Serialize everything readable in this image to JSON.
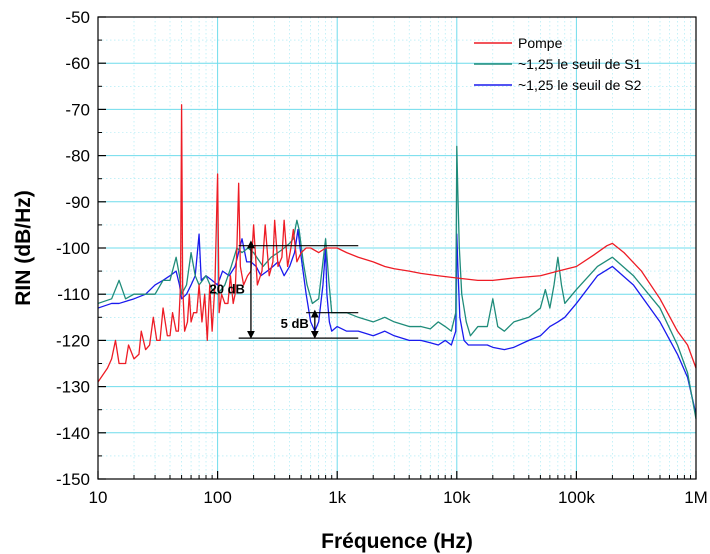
{
  "chart_data": {
    "type": "line",
    "xlabel": "Fréquence (Hz)",
    "ylabel": "RIN (dB/Hz)",
    "x_scale": "log",
    "xlim": [
      10,
      1000000
    ],
    "ylim": [
      -150,
      -50
    ],
    "x_ticks": [
      {
        "value": 10,
        "label": "10"
      },
      {
        "value": 100,
        "label": "100"
      },
      {
        "value": 1000,
        "label": "1k"
      },
      {
        "value": 10000,
        "label": "10k"
      },
      {
        "value": 100000,
        "label": "100k"
      },
      {
        "value": 1000000,
        "label": "1M"
      }
    ],
    "y_ticks": [
      {
        "value": -50,
        "label": "-50"
      },
      {
        "value": -60,
        "label": "-60"
      },
      {
        "value": -70,
        "label": "-70"
      },
      {
        "value": -80,
        "label": "-80"
      },
      {
        "value": -90,
        "label": "-90"
      },
      {
        "value": -100,
        "label": "-100"
      },
      {
        "value": -110,
        "label": "-110"
      },
      {
        "value": -120,
        "label": "-120"
      },
      {
        "value": -130,
        "label": "-130"
      },
      {
        "value": -140,
        "label": "-140"
      },
      {
        "value": -150,
        "label": "-150"
      }
    ],
    "grid": true,
    "legend_position": "top-right",
    "series": [
      {
        "name": "Pompe",
        "color": "#ee1c25",
        "points": [
          [
            10,
            -129
          ],
          [
            12,
            -126
          ],
          [
            13,
            -124
          ],
          [
            14,
            -120
          ],
          [
            15,
            -125
          ],
          [
            17,
            -125
          ],
          [
            18,
            -121
          ],
          [
            20,
            -124
          ],
          [
            22,
            -123
          ],
          [
            23,
            -118
          ],
          [
            25,
            -122
          ],
          [
            27,
            -121
          ],
          [
            29,
            -115
          ],
          [
            31,
            -120
          ],
          [
            33,
            -120
          ],
          [
            35,
            -113
          ],
          [
            38,
            -119
          ],
          [
            40,
            -119
          ],
          [
            42,
            -114
          ],
          [
            45,
            -118
          ],
          [
            47,
            -118
          ],
          [
            49,
            -108
          ],
          [
            50,
            -69
          ],
          [
            51,
            -108
          ],
          [
            53,
            -118
          ],
          [
            56,
            -116
          ],
          [
            58,
            -110
          ],
          [
            60,
            -116
          ],
          [
            63,
            -114
          ],
          [
            67,
            -114
          ],
          [
            70,
            -108
          ],
          [
            74,
            -116
          ],
          [
            78,
            -110
          ],
          [
            82,
            -120
          ],
          [
            86,
            -108
          ],
          [
            90,
            -118
          ],
          [
            95,
            -108
          ],
          [
            100,
            -84
          ],
          [
            103,
            -114
          ],
          [
            108,
            -110
          ],
          [
            115,
            -112
          ],
          [
            122,
            -112
          ],
          [
            128,
            -106
          ],
          [
            135,
            -112
          ],
          [
            140,
            -110
          ],
          [
            145,
            -100
          ],
          [
            150,
            -86
          ],
          [
            155,
            -104
          ],
          [
            165,
            -108
          ],
          [
            178,
            -106
          ],
          [
            190,
            -105
          ],
          [
            200,
            -95
          ],
          [
            215,
            -108
          ],
          [
            235,
            -105
          ],
          [
            250,
            -95
          ],
          [
            270,
            -106
          ],
          [
            290,
            -103
          ],
          [
            300,
            -94
          ],
          [
            320,
            -104
          ],
          [
            345,
            -102
          ],
          [
            360,
            -94
          ],
          [
            385,
            -104
          ],
          [
            410,
            -100
          ],
          [
            430,
            -96
          ],
          [
            460,
            -103
          ],
          [
            500,
            -101
          ],
          [
            550,
            -100
          ],
          [
            600,
            -100
          ],
          [
            700,
            -101
          ],
          [
            800,
            -100
          ],
          [
            1000,
            -100
          ],
          [
            1200,
            -101
          ],
          [
            1500,
            -102
          ],
          [
            2000,
            -103
          ],
          [
            2500,
            -104
          ],
          [
            3000,
            -104.5
          ],
          [
            4000,
            -105
          ],
          [
            5000,
            -105.5
          ],
          [
            7000,
            -106
          ],
          [
            10000,
            -106.5
          ],
          [
            15000,
            -107
          ],
          [
            20000,
            -107
          ],
          [
            30000,
            -106.5
          ],
          [
            50000,
            -106
          ],
          [
            70000,
            -105
          ],
          [
            100000,
            -104
          ],
          [
            140000,
            -101.5
          ],
          [
            180000,
            -99.5
          ],
          [
            200000,
            -99
          ],
          [
            250000,
            -101
          ],
          [
            350000,
            -105
          ],
          [
            500000,
            -111
          ],
          [
            700000,
            -118
          ],
          [
            850000,
            -121
          ],
          [
            1000000,
            -126
          ]
        ]
      },
      {
        "name": "~1,25 le seuil de S1",
        "color": "#1f8c7a",
        "points": [
          [
            10,
            -112
          ],
          [
            13,
            -111
          ],
          [
            15,
            -107
          ],
          [
            17,
            -111
          ],
          [
            20,
            -110
          ],
          [
            25,
            -110
          ],
          [
            30,
            -110
          ],
          [
            35,
            -107
          ],
          [
            40,
            -107
          ],
          [
            45,
            -102
          ],
          [
            48,
            -106
          ],
          [
            50,
            -110
          ],
          [
            55,
            -108
          ],
          [
            60,
            -101
          ],
          [
            65,
            -106
          ],
          [
            70,
            -108
          ],
          [
            80,
            -106
          ],
          [
            90,
            -109
          ],
          [
            100,
            -110
          ],
          [
            115,
            -108
          ],
          [
            130,
            -104
          ],
          [
            145,
            -100
          ],
          [
            160,
            -101
          ],
          [
            180,
            -100
          ],
          [
            200,
            -101
          ],
          [
            240,
            -104
          ],
          [
            280,
            -102
          ],
          [
            320,
            -101
          ],
          [
            360,
            -100
          ],
          [
            400,
            -99
          ],
          [
            430,
            -98
          ],
          [
            460,
            -94
          ],
          [
            480,
            -96
          ],
          [
            520,
            -103
          ],
          [
            560,
            -108
          ],
          [
            620,
            -112
          ],
          [
            700,
            -111
          ],
          [
            800,
            -98
          ],
          [
            850,
            -107
          ],
          [
            900,
            -114
          ],
          [
            1000,
            -114
          ],
          [
            1200,
            -114
          ],
          [
            1500,
            -115
          ],
          [
            2000,
            -116
          ],
          [
            2500,
            -115
          ],
          [
            3000,
            -116
          ],
          [
            4000,
            -117
          ],
          [
            5000,
            -117
          ],
          [
            6000,
            -117.5
          ],
          [
            7000,
            -116
          ],
          [
            8000,
            -117
          ],
          [
            9000,
            -118
          ],
          [
            9800,
            -114
          ],
          [
            10000,
            -78
          ],
          [
            10200,
            -88
          ],
          [
            10500,
            -100
          ],
          [
            11000,
            -110
          ],
          [
            12000,
            -116
          ],
          [
            13000,
            -119
          ],
          [
            15000,
            -117
          ],
          [
            18000,
            -117
          ],
          [
            20000,
            -111
          ],
          [
            22000,
            -117
          ],
          [
            25000,
            -118
          ],
          [
            30000,
            -116
          ],
          [
            40000,
            -115
          ],
          [
            50000,
            -113
          ],
          [
            55000,
            -109
          ],
          [
            60000,
            -113
          ],
          [
            65000,
            -108
          ],
          [
            70000,
            -102
          ],
          [
            75000,
            -108
          ],
          [
            80000,
            -112
          ],
          [
            100000,
            -109
          ],
          [
            150000,
            -104
          ],
          [
            200000,
            -102
          ],
          [
            300000,
            -106
          ],
          [
            500000,
            -113
          ],
          [
            700000,
            -121
          ],
          [
            850000,
            -127
          ],
          [
            1000000,
            -137
          ]
        ]
      },
      {
        "name": "~1,25 le seuil de S2",
        "color": "#1a1aee",
        "points": [
          [
            10,
            -113
          ],
          [
            13,
            -112
          ],
          [
            15,
            -112
          ],
          [
            20,
            -111
          ],
          [
            25,
            -110
          ],
          [
            30,
            -108
          ],
          [
            35,
            -107
          ],
          [
            40,
            -106
          ],
          [
            45,
            -105
          ],
          [
            48,
            -108
          ],
          [
            50,
            -111
          ],
          [
            55,
            -110
          ],
          [
            60,
            -108
          ],
          [
            65,
            -106
          ],
          [
            70,
            -97
          ],
          [
            73,
            -107
          ],
          [
            80,
            -106
          ],
          [
            90,
            -107
          ],
          [
            100,
            -108
          ],
          [
            110,
            -105
          ],
          [
            125,
            -106
          ],
          [
            140,
            -104
          ],
          [
            160,
            -98
          ],
          [
            175,
            -103
          ],
          [
            190,
            -103
          ],
          [
            210,
            -104
          ],
          [
            230,
            -106
          ],
          [
            260,
            -105
          ],
          [
            290,
            -104
          ],
          [
            320,
            -103
          ],
          [
            360,
            -106
          ],
          [
            400,
            -104
          ],
          [
            440,
            -101
          ],
          [
            470,
            -96
          ],
          [
            500,
            -102
          ],
          [
            550,
            -110
          ],
          [
            600,
            -116
          ],
          [
            650,
            -118
          ],
          [
            700,
            -116
          ],
          [
            760,
            -108
          ],
          [
            800,
            -100
          ],
          [
            820,
            -110
          ],
          [
            860,
            -116
          ],
          [
            900,
            -118
          ],
          [
            1000,
            -117
          ],
          [
            1200,
            -118
          ],
          [
            1500,
            -118
          ],
          [
            2000,
            -119
          ],
          [
            2500,
            -118
          ],
          [
            3000,
            -119
          ],
          [
            4000,
            -120
          ],
          [
            5000,
            -120
          ],
          [
            6000,
            -120.5
          ],
          [
            7000,
            -121
          ],
          [
            8000,
            -120
          ],
          [
            9000,
            -121
          ],
          [
            9800,
            -118
          ],
          [
            10000,
            -97
          ],
          [
            10200,
            -104
          ],
          [
            10600,
            -115
          ],
          [
            11500,
            -120
          ],
          [
            12500,
            -121
          ],
          [
            15000,
            -121
          ],
          [
            18000,
            -121
          ],
          [
            20000,
            -121.5
          ],
          [
            25000,
            -122
          ],
          [
            30000,
            -121.5
          ],
          [
            40000,
            -120
          ],
          [
            50000,
            -119
          ],
          [
            60000,
            -117
          ],
          [
            70000,
            -116
          ],
          [
            80000,
            -115
          ],
          [
            100000,
            -112
          ],
          [
            150000,
            -106
          ],
          [
            200000,
            -104
          ],
          [
            300000,
            -108
          ],
          [
            500000,
            -116
          ],
          [
            700000,
            -123
          ],
          [
            850000,
            -128
          ],
          [
            1000000,
            -136
          ]
        ]
      }
    ],
    "annotations": [
      {
        "label": "20 dB",
        "x": 190,
        "y_from": -119,
        "y_to": -99,
        "h_lines": [
          {
            "x_from": 150,
            "x_to": 1500,
            "y": -99.5
          },
          {
            "x_from": 150,
            "x_to": 1500,
            "y": -119.5
          }
        ]
      },
      {
        "label": "5 dB",
        "x": 650,
        "y_from": -119,
        "y_to": -114,
        "h_lines": [
          {
            "x_from": 550,
            "x_to": 1500,
            "y": -114
          }
        ]
      }
    ]
  }
}
